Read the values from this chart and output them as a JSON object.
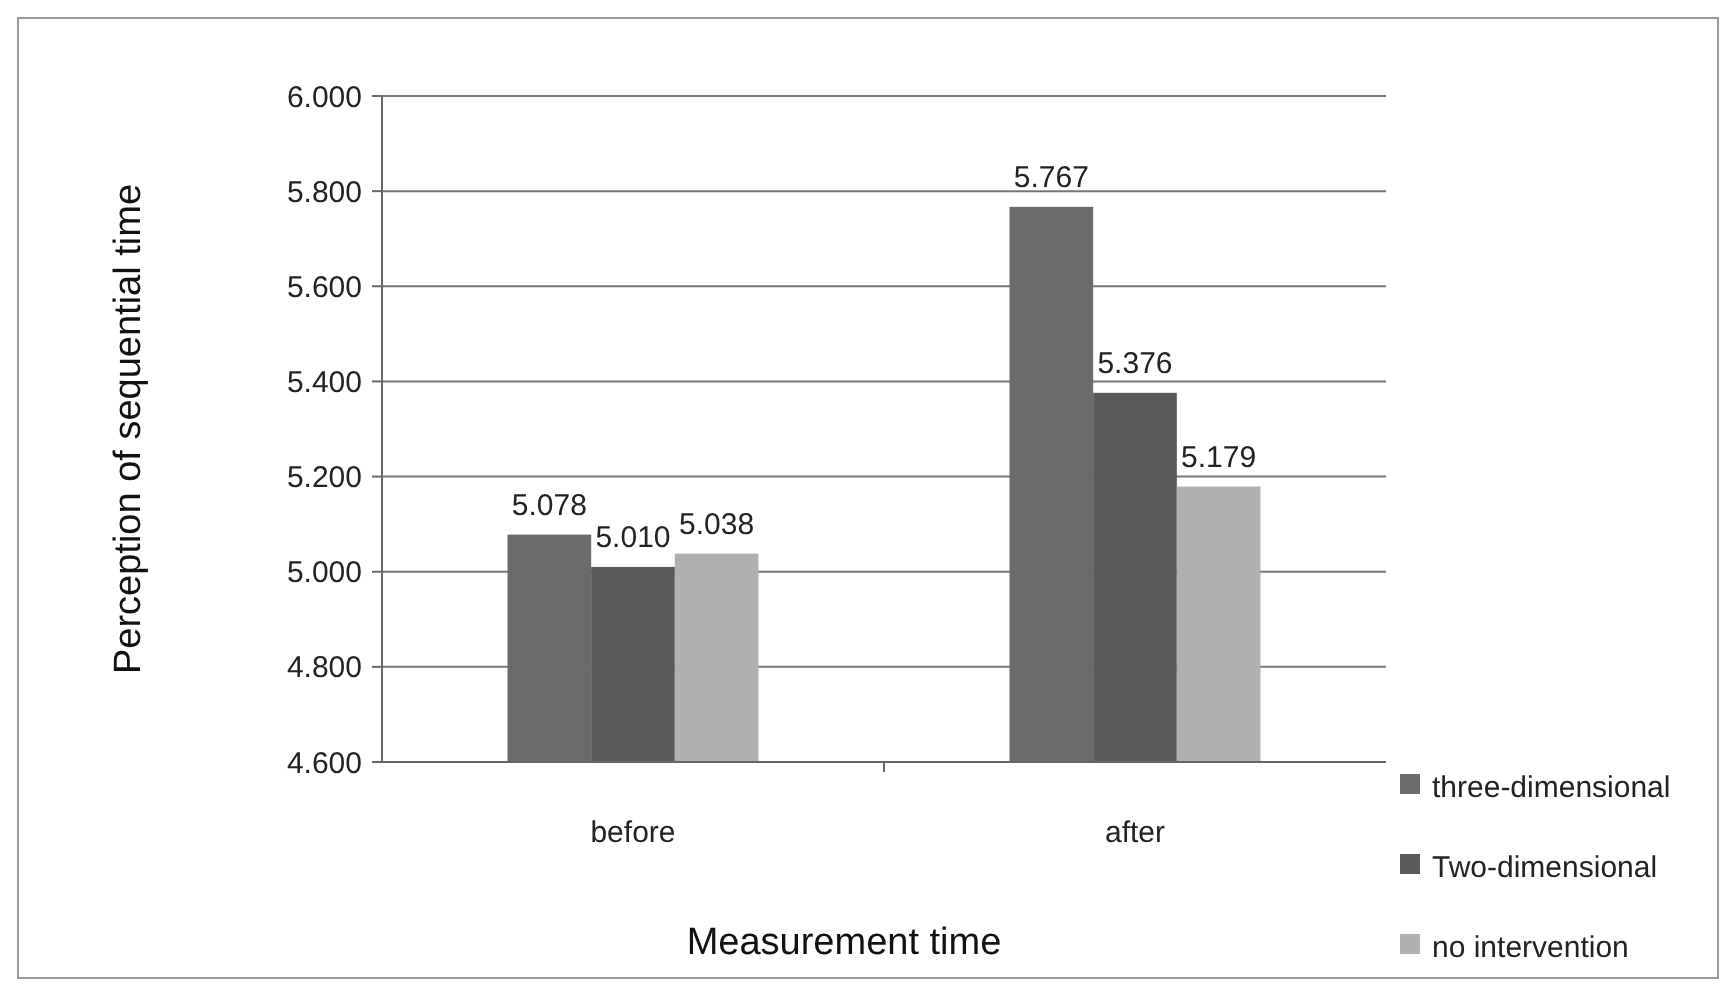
{
  "chart_data": {
    "type": "bar",
    "xlabel": "Measurement time",
    "ylabel": "Perception of sequential time",
    "categories": [
      "before",
      "after"
    ],
    "series": [
      {
        "name": "three-dimensional",
        "color": "#6b6b6b",
        "values": [
          5.078,
          5.767
        ],
        "value_labels": [
          "5.078",
          "5.767"
        ]
      },
      {
        "name": "Two-dimensional",
        "color": "#5a5a5a",
        "values": [
          5.01,
          5.376
        ],
        "value_labels": [
          "5.010",
          "5.376"
        ]
      },
      {
        "name": "no intervention",
        "color": "#b0b0b0",
        "values": [
          5.038,
          5.179
        ],
        "value_labels": [
          "5.038",
          "5.179"
        ]
      }
    ],
    "ylim": [
      4.6,
      6.0
    ],
    "yticks": [
      {
        "value": 4.6,
        "label": "4.600"
      },
      {
        "value": 4.8,
        "label": "4.800"
      },
      {
        "value": 5.0,
        "label": "5.000"
      },
      {
        "value": 5.2,
        "label": "5.200"
      },
      {
        "value": 5.4,
        "label": "5.400"
      },
      {
        "value": 5.6,
        "label": "5.600"
      },
      {
        "value": 5.8,
        "label": "5.800"
      },
      {
        "value": 6.0,
        "label": "6.000"
      }
    ],
    "grid": "y",
    "legend": "bottom right"
  }
}
